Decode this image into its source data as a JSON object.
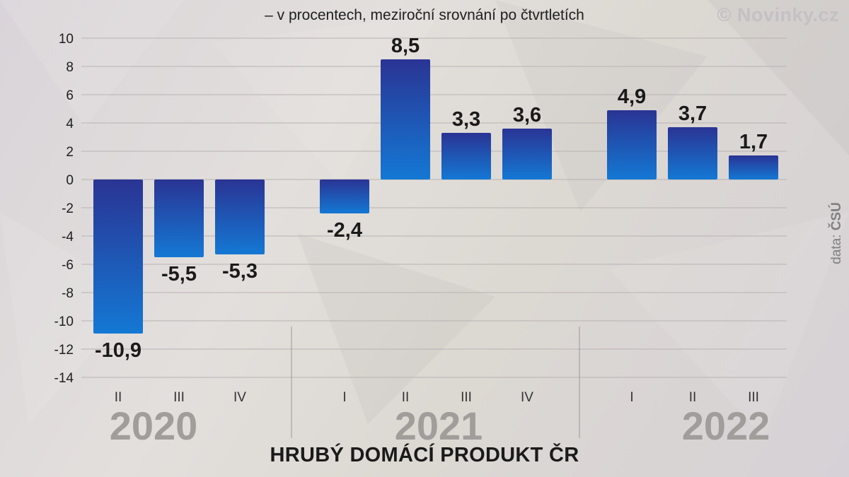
{
  "subtitle": "– v procentech, meziroční srovnání po čtvrtletích",
  "brand": "© Novinky.cz",
  "source": {
    "prefix": "data: ",
    "name": "ČSÚ"
  },
  "chart_data": {
    "type": "bar",
    "title": "HRUBÝ DOMÁCÍ PRODUKT ČR",
    "subtitle": "– v procentech, meziroční srovnání po čtvrtletích",
    "ylim": [
      -14,
      10
    ],
    "yticks": [
      10,
      8,
      6,
      4,
      2,
      0,
      -2,
      -4,
      -6,
      -8,
      -10,
      -12,
      -14
    ],
    "grid": true,
    "groups": [
      {
        "year": "2020",
        "quarters": [
          "II",
          "III",
          "IV"
        ],
        "values": [
          -10.9,
          -5.5,
          -5.3
        ],
        "labels": [
          "-10,9",
          "-5,5",
          "-5,3"
        ]
      },
      {
        "year": "2021",
        "quarters": [
          "I",
          "II",
          "III",
          "IV"
        ],
        "values": [
          -2.4,
          8.5,
          3.3,
          3.6
        ],
        "labels": [
          "-2,4",
          "8,5",
          "3,3",
          "3,6"
        ]
      },
      {
        "year": "2022",
        "quarters": [
          "I",
          "II",
          "III"
        ],
        "values": [
          4.9,
          3.7,
          1.7
        ],
        "labels": [
          "4,9",
          "3,7",
          "1,7"
        ]
      }
    ],
    "colors": {
      "bar_top": "#2a3494",
      "bar_bottom": "#1478d4",
      "grid": "#b8b3b3",
      "year_label": "#a19d9b"
    }
  }
}
